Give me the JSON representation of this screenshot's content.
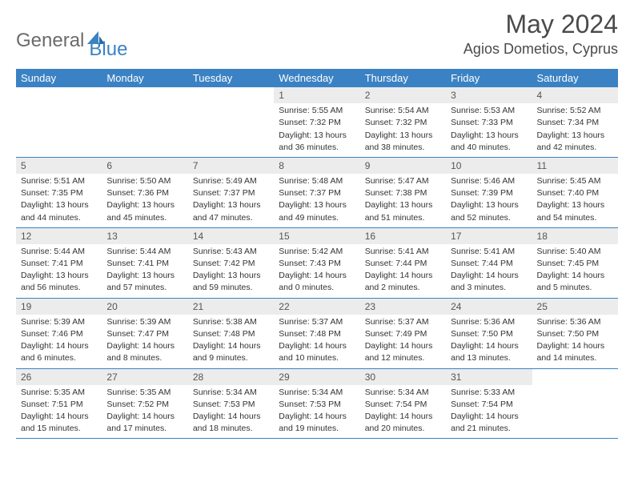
{
  "logo": {
    "text_gray": "General",
    "text_blue": "Blue"
  },
  "title": "May 2024",
  "location": "Agios Dometios, Cyprus",
  "colors": {
    "header_bar": "#3b82c4",
    "header_text": "#ffffff",
    "daynum_bg": "#ececec",
    "row_border": "#3b82c4",
    "logo_gray": "#6b6b6b",
    "logo_blue": "#3b82c4",
    "body_text": "#333333",
    "title_text": "#4a4a4a"
  },
  "weekdays": [
    "Sunday",
    "Monday",
    "Tuesday",
    "Wednesday",
    "Thursday",
    "Friday",
    "Saturday"
  ],
  "weeks": [
    [
      {
        "empty": true
      },
      {
        "empty": true
      },
      {
        "empty": true
      },
      {
        "day": "1",
        "sunrise": "Sunrise: 5:55 AM",
        "sunset": "Sunset: 7:32 PM",
        "daylight1": "Daylight: 13 hours",
        "daylight2": "and 36 minutes."
      },
      {
        "day": "2",
        "sunrise": "Sunrise: 5:54 AM",
        "sunset": "Sunset: 7:32 PM",
        "daylight1": "Daylight: 13 hours",
        "daylight2": "and 38 minutes."
      },
      {
        "day": "3",
        "sunrise": "Sunrise: 5:53 AM",
        "sunset": "Sunset: 7:33 PM",
        "daylight1": "Daylight: 13 hours",
        "daylight2": "and 40 minutes."
      },
      {
        "day": "4",
        "sunrise": "Sunrise: 5:52 AM",
        "sunset": "Sunset: 7:34 PM",
        "daylight1": "Daylight: 13 hours",
        "daylight2": "and 42 minutes."
      }
    ],
    [
      {
        "day": "5",
        "sunrise": "Sunrise: 5:51 AM",
        "sunset": "Sunset: 7:35 PM",
        "daylight1": "Daylight: 13 hours",
        "daylight2": "and 44 minutes."
      },
      {
        "day": "6",
        "sunrise": "Sunrise: 5:50 AM",
        "sunset": "Sunset: 7:36 PM",
        "daylight1": "Daylight: 13 hours",
        "daylight2": "and 45 minutes."
      },
      {
        "day": "7",
        "sunrise": "Sunrise: 5:49 AM",
        "sunset": "Sunset: 7:37 PM",
        "daylight1": "Daylight: 13 hours",
        "daylight2": "and 47 minutes."
      },
      {
        "day": "8",
        "sunrise": "Sunrise: 5:48 AM",
        "sunset": "Sunset: 7:37 PM",
        "daylight1": "Daylight: 13 hours",
        "daylight2": "and 49 minutes."
      },
      {
        "day": "9",
        "sunrise": "Sunrise: 5:47 AM",
        "sunset": "Sunset: 7:38 PM",
        "daylight1": "Daylight: 13 hours",
        "daylight2": "and 51 minutes."
      },
      {
        "day": "10",
        "sunrise": "Sunrise: 5:46 AM",
        "sunset": "Sunset: 7:39 PM",
        "daylight1": "Daylight: 13 hours",
        "daylight2": "and 52 minutes."
      },
      {
        "day": "11",
        "sunrise": "Sunrise: 5:45 AM",
        "sunset": "Sunset: 7:40 PM",
        "daylight1": "Daylight: 13 hours",
        "daylight2": "and 54 minutes."
      }
    ],
    [
      {
        "day": "12",
        "sunrise": "Sunrise: 5:44 AM",
        "sunset": "Sunset: 7:41 PM",
        "daylight1": "Daylight: 13 hours",
        "daylight2": "and 56 minutes."
      },
      {
        "day": "13",
        "sunrise": "Sunrise: 5:44 AM",
        "sunset": "Sunset: 7:41 PM",
        "daylight1": "Daylight: 13 hours",
        "daylight2": "and 57 minutes."
      },
      {
        "day": "14",
        "sunrise": "Sunrise: 5:43 AM",
        "sunset": "Sunset: 7:42 PM",
        "daylight1": "Daylight: 13 hours",
        "daylight2": "and 59 minutes."
      },
      {
        "day": "15",
        "sunrise": "Sunrise: 5:42 AM",
        "sunset": "Sunset: 7:43 PM",
        "daylight1": "Daylight: 14 hours",
        "daylight2": "and 0 minutes."
      },
      {
        "day": "16",
        "sunrise": "Sunrise: 5:41 AM",
        "sunset": "Sunset: 7:44 PM",
        "daylight1": "Daylight: 14 hours",
        "daylight2": "and 2 minutes."
      },
      {
        "day": "17",
        "sunrise": "Sunrise: 5:41 AM",
        "sunset": "Sunset: 7:44 PM",
        "daylight1": "Daylight: 14 hours",
        "daylight2": "and 3 minutes."
      },
      {
        "day": "18",
        "sunrise": "Sunrise: 5:40 AM",
        "sunset": "Sunset: 7:45 PM",
        "daylight1": "Daylight: 14 hours",
        "daylight2": "and 5 minutes."
      }
    ],
    [
      {
        "day": "19",
        "sunrise": "Sunrise: 5:39 AM",
        "sunset": "Sunset: 7:46 PM",
        "daylight1": "Daylight: 14 hours",
        "daylight2": "and 6 minutes."
      },
      {
        "day": "20",
        "sunrise": "Sunrise: 5:39 AM",
        "sunset": "Sunset: 7:47 PM",
        "daylight1": "Daylight: 14 hours",
        "daylight2": "and 8 minutes."
      },
      {
        "day": "21",
        "sunrise": "Sunrise: 5:38 AM",
        "sunset": "Sunset: 7:48 PM",
        "daylight1": "Daylight: 14 hours",
        "daylight2": "and 9 minutes."
      },
      {
        "day": "22",
        "sunrise": "Sunrise: 5:37 AM",
        "sunset": "Sunset: 7:48 PM",
        "daylight1": "Daylight: 14 hours",
        "daylight2": "and 10 minutes."
      },
      {
        "day": "23",
        "sunrise": "Sunrise: 5:37 AM",
        "sunset": "Sunset: 7:49 PM",
        "daylight1": "Daylight: 14 hours",
        "daylight2": "and 12 minutes."
      },
      {
        "day": "24",
        "sunrise": "Sunrise: 5:36 AM",
        "sunset": "Sunset: 7:50 PM",
        "daylight1": "Daylight: 14 hours",
        "daylight2": "and 13 minutes."
      },
      {
        "day": "25",
        "sunrise": "Sunrise: 5:36 AM",
        "sunset": "Sunset: 7:50 PM",
        "daylight1": "Daylight: 14 hours",
        "daylight2": "and 14 minutes."
      }
    ],
    [
      {
        "day": "26",
        "sunrise": "Sunrise: 5:35 AM",
        "sunset": "Sunset: 7:51 PM",
        "daylight1": "Daylight: 14 hours",
        "daylight2": "and 15 minutes."
      },
      {
        "day": "27",
        "sunrise": "Sunrise: 5:35 AM",
        "sunset": "Sunset: 7:52 PM",
        "daylight1": "Daylight: 14 hours",
        "daylight2": "and 17 minutes."
      },
      {
        "day": "28",
        "sunrise": "Sunrise: 5:34 AM",
        "sunset": "Sunset: 7:53 PM",
        "daylight1": "Daylight: 14 hours",
        "daylight2": "and 18 minutes."
      },
      {
        "day": "29",
        "sunrise": "Sunrise: 5:34 AM",
        "sunset": "Sunset: 7:53 PM",
        "daylight1": "Daylight: 14 hours",
        "daylight2": "and 19 minutes."
      },
      {
        "day": "30",
        "sunrise": "Sunrise: 5:34 AM",
        "sunset": "Sunset: 7:54 PM",
        "daylight1": "Daylight: 14 hours",
        "daylight2": "and 20 minutes."
      },
      {
        "day": "31",
        "sunrise": "Sunrise: 5:33 AM",
        "sunset": "Sunset: 7:54 PM",
        "daylight1": "Daylight: 14 hours",
        "daylight2": "and 21 minutes."
      },
      {
        "empty": true
      }
    ]
  ]
}
